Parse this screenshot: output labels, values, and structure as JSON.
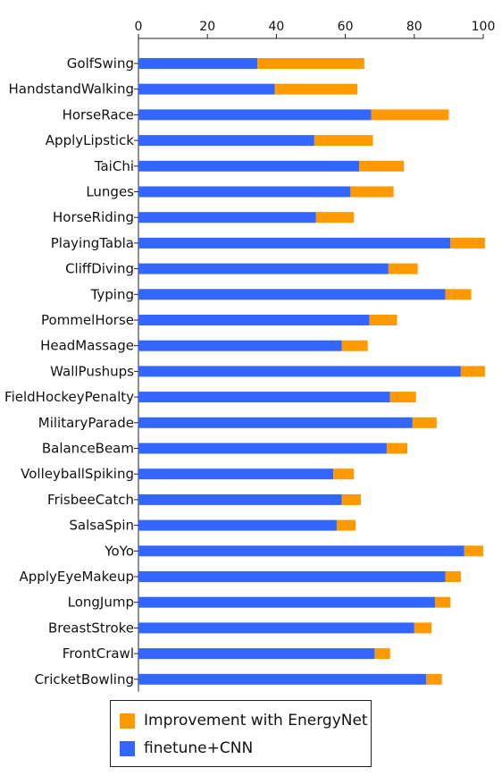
{
  "chart_data": {
    "type": "bar",
    "orientation": "horizontal",
    "stacked": true,
    "categories": [
      "GolfSwing",
      "HandstandWalking",
      "HorseRace",
      "ApplyLipstick",
      "TaiChi",
      "Lunges",
      "HorseRiding",
      "PlayingTabla",
      "CliffDiving",
      "Typing",
      "PommelHorse",
      "HeadMassage",
      "WallPushups",
      "FieldHockeyPenalty",
      "MilitaryParade",
      "BalanceBeam",
      "VolleyballSpiking",
      "FrisbeeCatch",
      "SalsaSpin",
      "YoYo",
      "ApplyEyeMakeup",
      "LongJump",
      "BreastStroke",
      "FrontCrawl",
      "CricketBowling"
    ],
    "series": [
      {
        "name": "finetune+CNN",
        "color": "#3366ff",
        "values": [
          34.5,
          39.5,
          67.5,
          51,
          64,
          61.5,
          51.5,
          90.5,
          72.5,
          89,
          67,
          59,
          93.5,
          73,
          79.5,
          72,
          56.5,
          59,
          57.5,
          94.5,
          89,
          86,
          80,
          68.5,
          83.5
        ]
      },
      {
        "name": "Improvement with EnergyNet",
        "color": "#ff9900",
        "values": [
          31,
          24,
          22.5,
          17,
          13,
          12.5,
          11,
          10,
          8.5,
          7.5,
          8,
          7.5,
          7,
          7.5,
          7,
          6,
          6,
          5.5,
          5.5,
          5.5,
          4.5,
          4.5,
          5,
          4.5,
          4.5
        ]
      }
    ],
    "xlim": [
      0,
      100
    ],
    "xticks": [
      0,
      20,
      40,
      60,
      80,
      100
    ],
    "xaxis_position": "top",
    "grid": false,
    "legend_position": "bottom",
    "title": "",
    "xlabel": "",
    "ylabel": ""
  },
  "legend": {
    "items": [
      {
        "label": "Improvement with EnergyNet",
        "color": "#ff9900"
      },
      {
        "label": "finetune+CNN",
        "color": "#3366ff"
      }
    ]
  }
}
